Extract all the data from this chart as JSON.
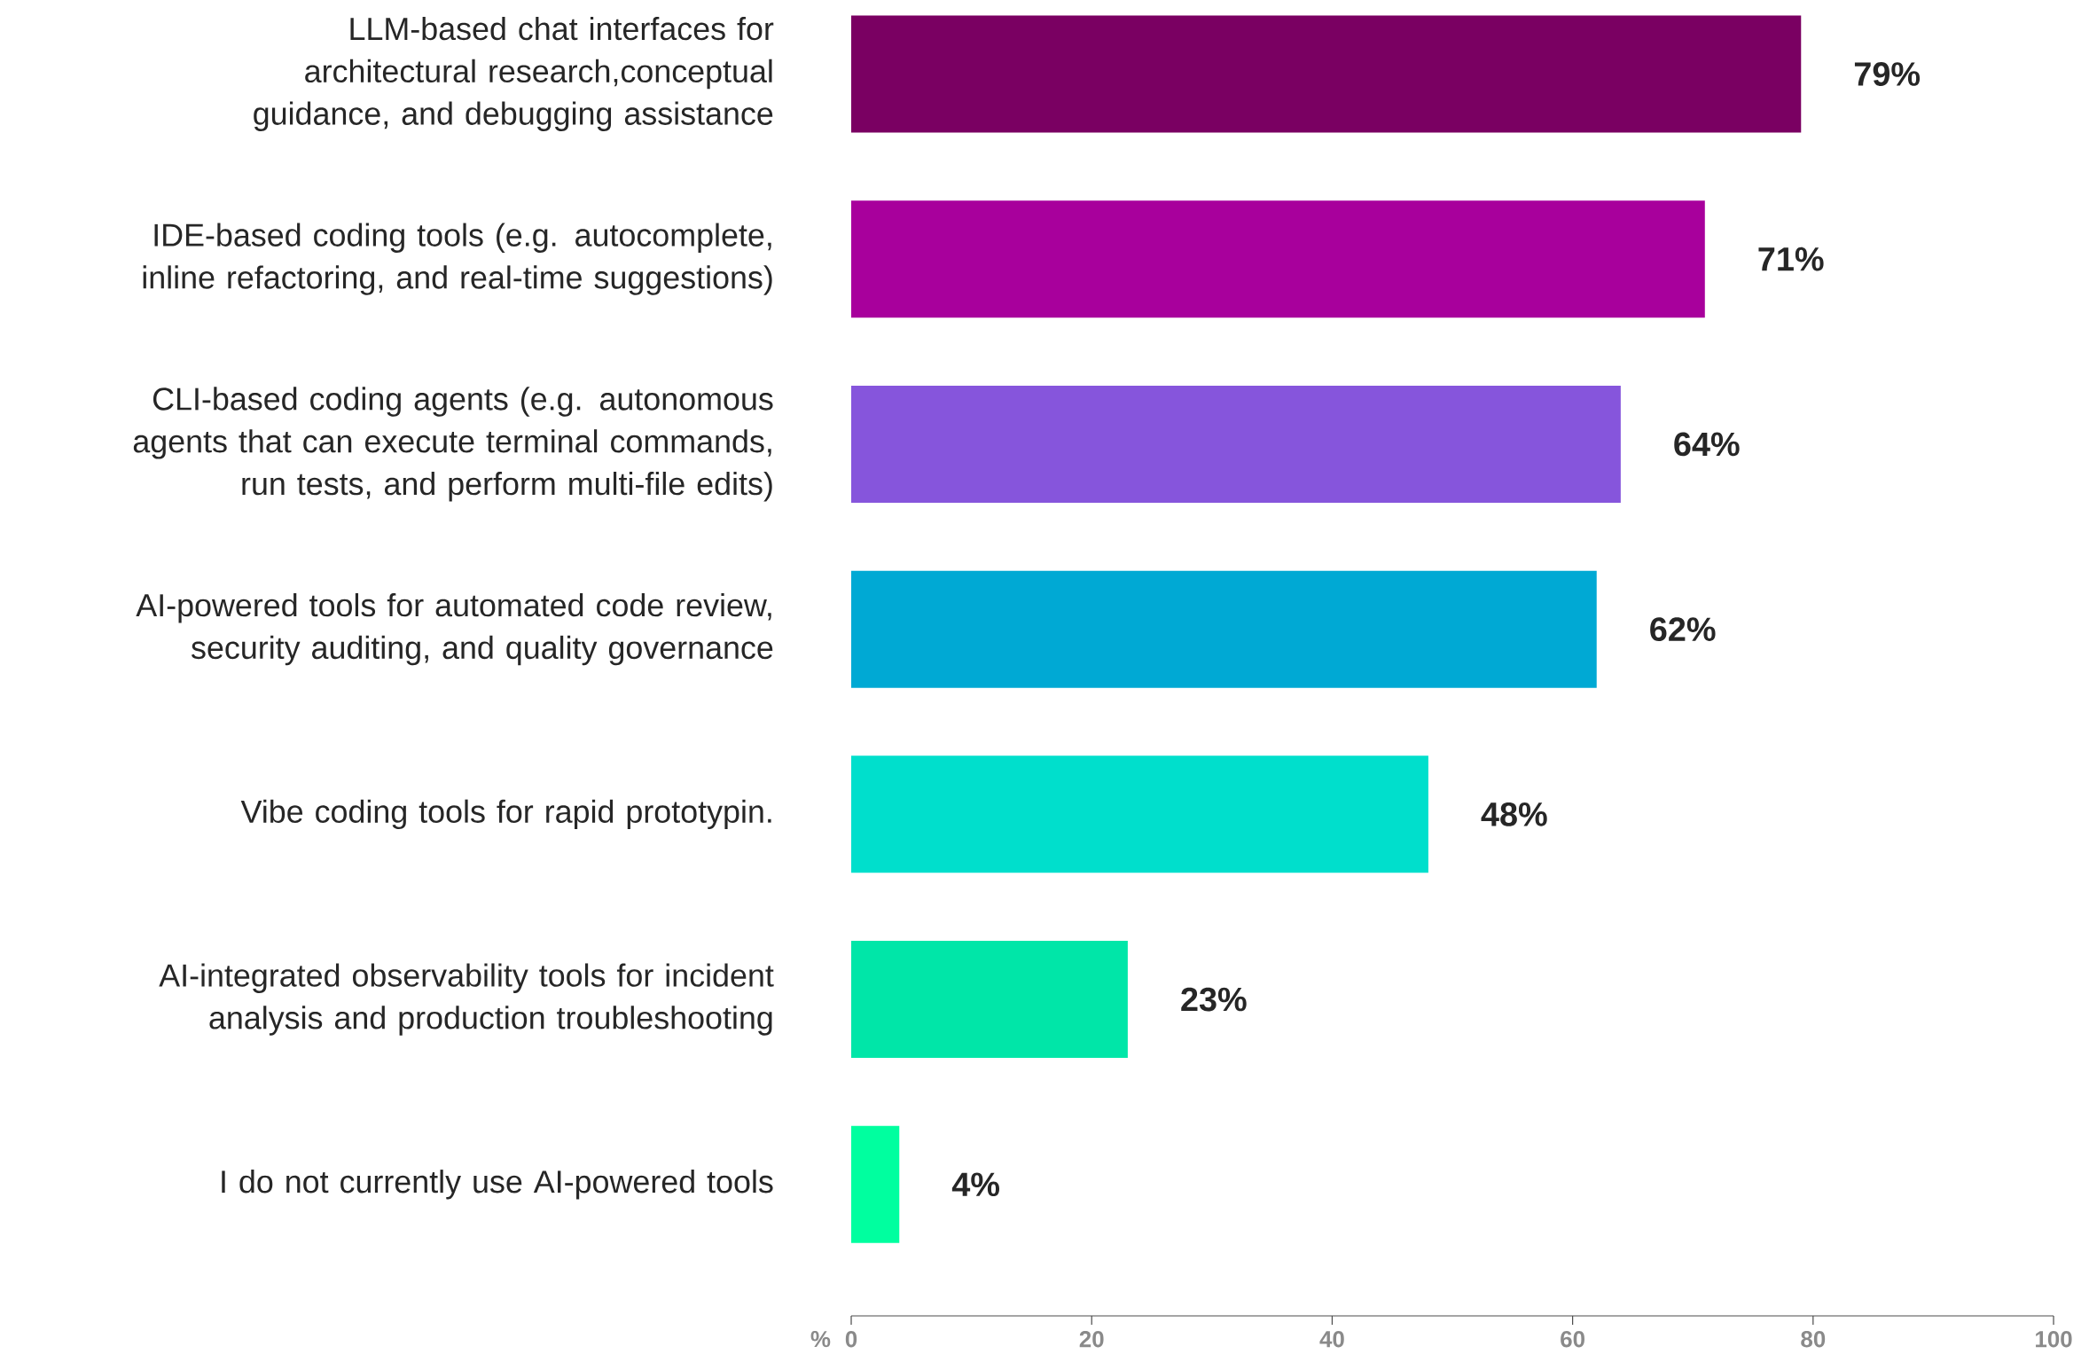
{
  "chart_data": {
    "type": "bar",
    "orientation": "horizontal",
    "xlabel": "%",
    "categories": [
      "LLM-based chat interfaces for architectural research,conceptual guidance, and debugging assistance",
      "IDE-based coding tools (e.g. autocomplete, inline refactoring, and real-time suggestions)",
      "CLI-based coding agents (e.g. autonomous agents that can execute terminal commands, run tests, and perform multi-file edits)",
      "AI-powered tools for automated code review, security auditing, and quality governance",
      "Vibe coding tools for rapid prototypin.",
      "AI-integrated observability tools for incident analysis and production troubleshooting",
      "I do not currently use AI-powered tools"
    ],
    "values": [
      79,
      71,
      64,
      62,
      48,
      23,
      4
    ],
    "value_labels": [
      "79%",
      "71%",
      "64%",
      "62%",
      "48%",
      "23%",
      "4%"
    ],
    "colors": [
      "#7a0062",
      "#a8009c",
      "#8655dc",
      "#00a9d4",
      "#00dfcc",
      "#00e6a8",
      "#00ff9f"
    ],
    "xlim": [
      0,
      100
    ],
    "xticks": [
      0,
      20,
      40,
      60,
      80,
      100
    ]
  }
}
